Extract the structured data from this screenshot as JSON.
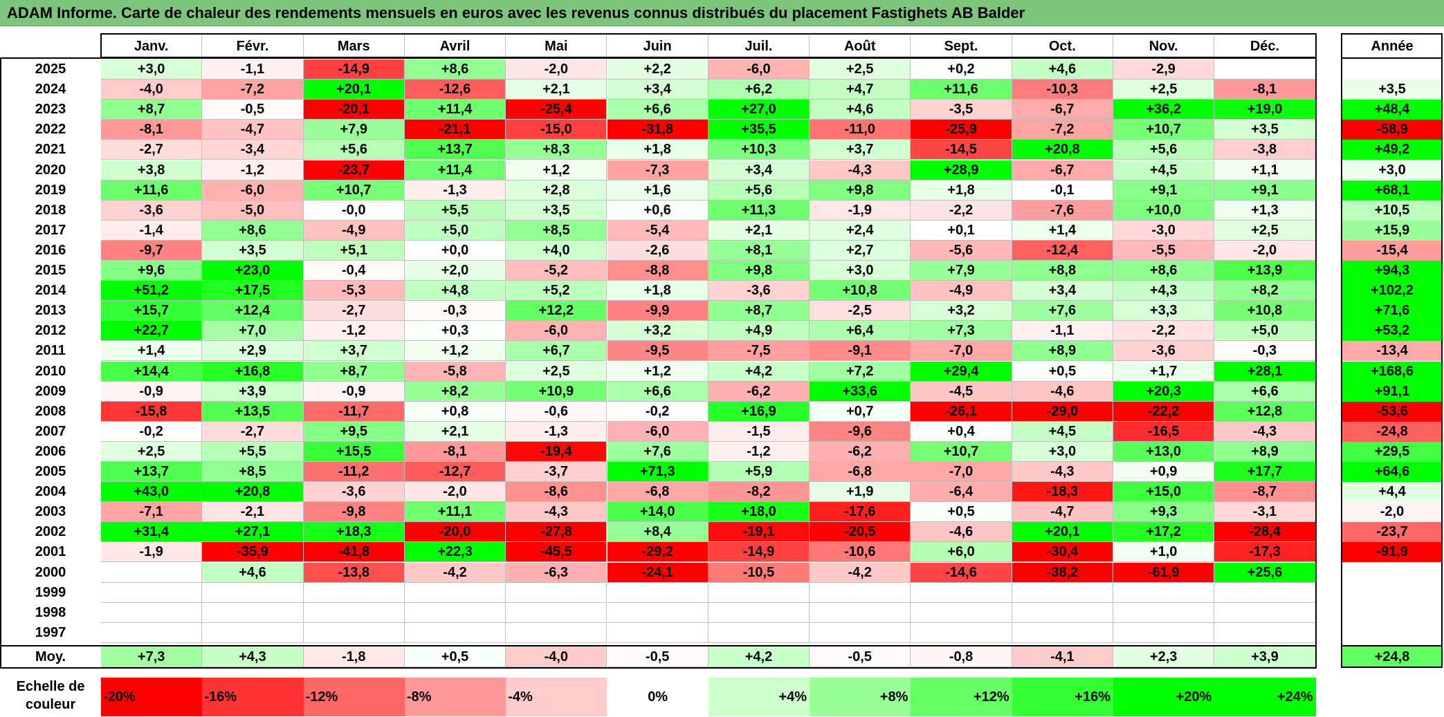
{
  "title": "ADAM Informe. Carte de chaleur des rendements mensuels en euros avec les revenus connus distribués du placement Fastighets AB Balder",
  "months": [
    "Janv.",
    "Févr.",
    "Mars",
    "Avril",
    "Mai",
    "Juin",
    "Juil.",
    "Août",
    "Sept.",
    "Oct.",
    "Nov.",
    "Déc."
  ],
  "year_header": "Année",
  "avg_label": "Moy.",
  "scale_label": "Echelle de couleur",
  "colors": {
    "title_bg": "#7cc57a",
    "negative_max": "#ff0000",
    "zero": "#ffffff",
    "positive_max": "#00ff00"
  },
  "chart_data": {
    "type": "heatmap",
    "title": "ADAM Informe. Carte de chaleur des rendements mensuels en euros avec les revenus connus distribués du placement Fastighets AB Balder",
    "columns": [
      "Janv.",
      "Févr.",
      "Mars",
      "Avril",
      "Mai",
      "Juin",
      "Juil.",
      "Août",
      "Sept.",
      "Oct.",
      "Nov.",
      "Déc."
    ],
    "rows": [
      {
        "year": "2025",
        "values": [
          "+3,0",
          "-1,1",
          "-14,9",
          "+8,6",
          "-2,0",
          "+2,2",
          "-6,0",
          "+2,5",
          "+0,2",
          "+4,6",
          "-2,9",
          ""
        ],
        "annual": ""
      },
      {
        "year": "2024",
        "values": [
          "-4,0",
          "-7,2",
          "+20,1",
          "-12,6",
          "+2,1",
          "+3,4",
          "+6,2",
          "+4,7",
          "+11,6",
          "-10,3",
          "+2,5",
          "-8,1"
        ],
        "annual": "+3,5"
      },
      {
        "year": "2023",
        "values": [
          "+8,7",
          "-0,5",
          "-20,1",
          "+11,4",
          "-25,4",
          "+6,6",
          "+27,0",
          "+4,6",
          "-3,5",
          "-6,7",
          "+36,2",
          "+19,0"
        ],
        "annual": "+48,4"
      },
      {
        "year": "2022",
        "values": [
          "-8,1",
          "-4,7",
          "+7,9",
          "-21,1",
          "-15,0",
          "-31,8",
          "+35,5",
          "-11,0",
          "-25,9",
          "-7,2",
          "+10,7",
          "+3,5"
        ],
        "annual": "-58,9"
      },
      {
        "year": "2021",
        "values": [
          "-2,7",
          "-3,4",
          "+5,6",
          "+13,7",
          "+8,3",
          "+1,8",
          "+10,3",
          "+3,7",
          "-14,5",
          "+20,8",
          "+5,6",
          "-3,8"
        ],
        "annual": "+49,2"
      },
      {
        "year": "2020",
        "values": [
          "+3,8",
          "-1,2",
          "-23,7",
          "+11,4",
          "+1,2",
          "-7,3",
          "+3,4",
          "-4,3",
          "+28,9",
          "-6,7",
          "+4,5",
          "+1,1"
        ],
        "annual": "+3,0"
      },
      {
        "year": "2019",
        "values": [
          "+11,6",
          "-6,0",
          "+10,7",
          "-1,3",
          "+2,8",
          "+1,6",
          "+5,6",
          "+9,8",
          "+1,8",
          "-0,1",
          "+9,1",
          "+9,1"
        ],
        "annual": "+68,1"
      },
      {
        "year": "2018",
        "values": [
          "-3,6",
          "-5,0",
          "-0,0",
          "+5,5",
          "+3,5",
          "+0,6",
          "+11,3",
          "-1,9",
          "-2,2",
          "-7,6",
          "+10,0",
          "+1,3"
        ],
        "annual": "+10,5"
      },
      {
        "year": "2017",
        "values": [
          "-1,4",
          "+8,6",
          "-4,9",
          "+5,0",
          "+8,5",
          "-5,4",
          "+2,1",
          "+2,4",
          "+0,1",
          "+1,4",
          "-3,0",
          "+2,5"
        ],
        "annual": "+15,9"
      },
      {
        "year": "2016",
        "values": [
          "-9,7",
          "+3,5",
          "+5,1",
          "+0,0",
          "+4,0",
          "-2,6",
          "+8,1",
          "+2,7",
          "-5,6",
          "-12,4",
          "-5,5",
          "-2,0"
        ],
        "annual": "-15,4"
      },
      {
        "year": "2015",
        "values": [
          "+9,6",
          "+23,0",
          "-0,4",
          "+2,0",
          "-5,2",
          "-8,8",
          "+9,8",
          "+3,0",
          "+7,9",
          "+8,8",
          "+8,6",
          "+13,9"
        ],
        "annual": "+94,3"
      },
      {
        "year": "2014",
        "values": [
          "+51,2",
          "+17,5",
          "-5,3",
          "+4,8",
          "+5,2",
          "+1,8",
          "-3,6",
          "+10,8",
          "-4,9",
          "+3,4",
          "+4,3",
          "+8,2"
        ],
        "annual": "+102,2"
      },
      {
        "year": "2013",
        "values": [
          "+15,7",
          "+12,4",
          "-2,7",
          "-0,3",
          "+12,2",
          "-9,9",
          "+8,7",
          "-2,5",
          "+3,2",
          "+7,6",
          "+3,3",
          "+10,8"
        ],
        "annual": "+71,6"
      },
      {
        "year": "2012",
        "values": [
          "+22,7",
          "+7,0",
          "-1,2",
          "+0,3",
          "-6,0",
          "+3,2",
          "+4,9",
          "+6,4",
          "+7,3",
          "-1,1",
          "-2,2",
          "+5,0"
        ],
        "annual": "+53,2"
      },
      {
        "year": "2011",
        "values": [
          "+1,4",
          "+2,9",
          "+3,7",
          "+1,2",
          "+6,7",
          "-9,5",
          "-7,5",
          "-9,1",
          "-7,0",
          "+8,9",
          "-3,6",
          "-0,3"
        ],
        "annual": "-13,4"
      },
      {
        "year": "2010",
        "values": [
          "+14,4",
          "+16,8",
          "+8,7",
          "-5,8",
          "+2,5",
          "+1,2",
          "+4,2",
          "+7,2",
          "+29,4",
          "+0,5",
          "+1,7",
          "+28,1"
        ],
        "annual": "+168,6"
      },
      {
        "year": "2009",
        "values": [
          "-0,9",
          "+3,9",
          "-0,9",
          "+8,2",
          "+10,9",
          "+6,6",
          "-6,2",
          "+33,6",
          "-4,5",
          "-4,6",
          "+20,3",
          "+6,6"
        ],
        "annual": "+91,1"
      },
      {
        "year": "2008",
        "values": [
          "-15,8",
          "+13,5",
          "-11,7",
          "+0,8",
          "-0,6",
          "-0,2",
          "+16,9",
          "+0,7",
          "-26,1",
          "-29,0",
          "-22,2",
          "+12,8"
        ],
        "annual": "-53,6"
      },
      {
        "year": "2007",
        "values": [
          "-0,2",
          "-2,7",
          "+9,5",
          "+2,1",
          "-1,3",
          "-6,0",
          "-1,5",
          "-9,6",
          "+0,4",
          "+4,5",
          "-16,5",
          "-4,3"
        ],
        "annual": "-24,8"
      },
      {
        "year": "2006",
        "values": [
          "+2,5",
          "+5,5",
          "+15,5",
          "-8,1",
          "-19,4",
          "+7,6",
          "-1,2",
          "-6,2",
          "+10,7",
          "+3,0",
          "+13,0",
          "+8,9"
        ],
        "annual": "+29,5"
      },
      {
        "year": "2005",
        "values": [
          "+13,7",
          "+8,5",
          "-11,2",
          "-12,7",
          "-3,7",
          "+71,3",
          "+5,9",
          "-6,8",
          "-7,0",
          "-4,3",
          "+0,9",
          "+17,7"
        ],
        "annual": "+64,6"
      },
      {
        "year": "2004",
        "values": [
          "+43,0",
          "+20,8",
          "-3,6",
          "-2,0",
          "-8,6",
          "-6,8",
          "-8,2",
          "+1,9",
          "-6,4",
          "-18,3",
          "+15,0",
          "-8,7"
        ],
        "annual": "+4,4"
      },
      {
        "year": "2003",
        "values": [
          "-7,1",
          "-2,1",
          "-9,8",
          "+11,1",
          "-4,3",
          "+14,0",
          "+18,0",
          "-17,6",
          "+0,5",
          "-4,7",
          "+9,3",
          "-3,1"
        ],
        "annual": "-2,0"
      },
      {
        "year": "2002",
        "values": [
          "+31,4",
          "+27,1",
          "+18,3",
          "-20,0",
          "-27,8",
          "+8,4",
          "-19,1",
          "-20,5",
          "-4,6",
          "+20,1",
          "+17,2",
          "-28,4"
        ],
        "annual": "-23,7"
      },
      {
        "year": "2001",
        "values": [
          "-1,9",
          "-35,9",
          "-41,8",
          "+22,3",
          "-45,5",
          "-29,2",
          "-14,9",
          "-10,6",
          "+6,0",
          "-30,4",
          "+1,0",
          "-17,3"
        ],
        "annual": "-91,9"
      },
      {
        "year": "2000",
        "values": [
          "",
          "+4,6",
          "-13,8",
          "-4,2",
          "-6,3",
          "-24,1",
          "-10,5",
          "-4,2",
          "-14,6",
          "-38,2",
          "-61,9",
          "+25,6"
        ],
        "annual": ""
      },
      {
        "year": "1999",
        "values": [
          "",
          "",
          "",
          "",
          "",
          "",
          "",
          "",
          "",
          "",
          "",
          ""
        ],
        "annual": ""
      },
      {
        "year": "1998",
        "values": [
          "",
          "",
          "",
          "",
          "",
          "",
          "",
          "",
          "",
          "",
          "",
          ""
        ],
        "annual": ""
      },
      {
        "year": "1997",
        "values": [
          "",
          "",
          "",
          "",
          "",
          "",
          "",
          "",
          "",
          "",
          "",
          ""
        ],
        "annual": ""
      }
    ],
    "averages": [
      "+7,3",
      "+4,3",
      "-1,8",
      "+0,5",
      "-4,0",
      "-0,5",
      "+4,2",
      "-0,5",
      "-0,8",
      "-4,1",
      "+2,3",
      "+3,9"
    ],
    "average_annual": "+24,8",
    "color_scale": [
      {
        "label": "-20%",
        "value": -20
      },
      {
        "label": "-16%",
        "value": -16
      },
      {
        "label": "-12%",
        "value": -12
      },
      {
        "label": "-8%",
        "value": -8
      },
      {
        "label": "-4%",
        "value": -4
      },
      {
        "label": "0%",
        "value": 0
      },
      {
        "label": "+4%",
        "value": 4
      },
      {
        "label": "+8%",
        "value": 8
      },
      {
        "label": "+12%",
        "value": 12
      },
      {
        "label": "+16%",
        "value": 16
      },
      {
        "label": "+20%",
        "value": 20
      },
      {
        "label": "+24%",
        "value": 24
      }
    ]
  }
}
